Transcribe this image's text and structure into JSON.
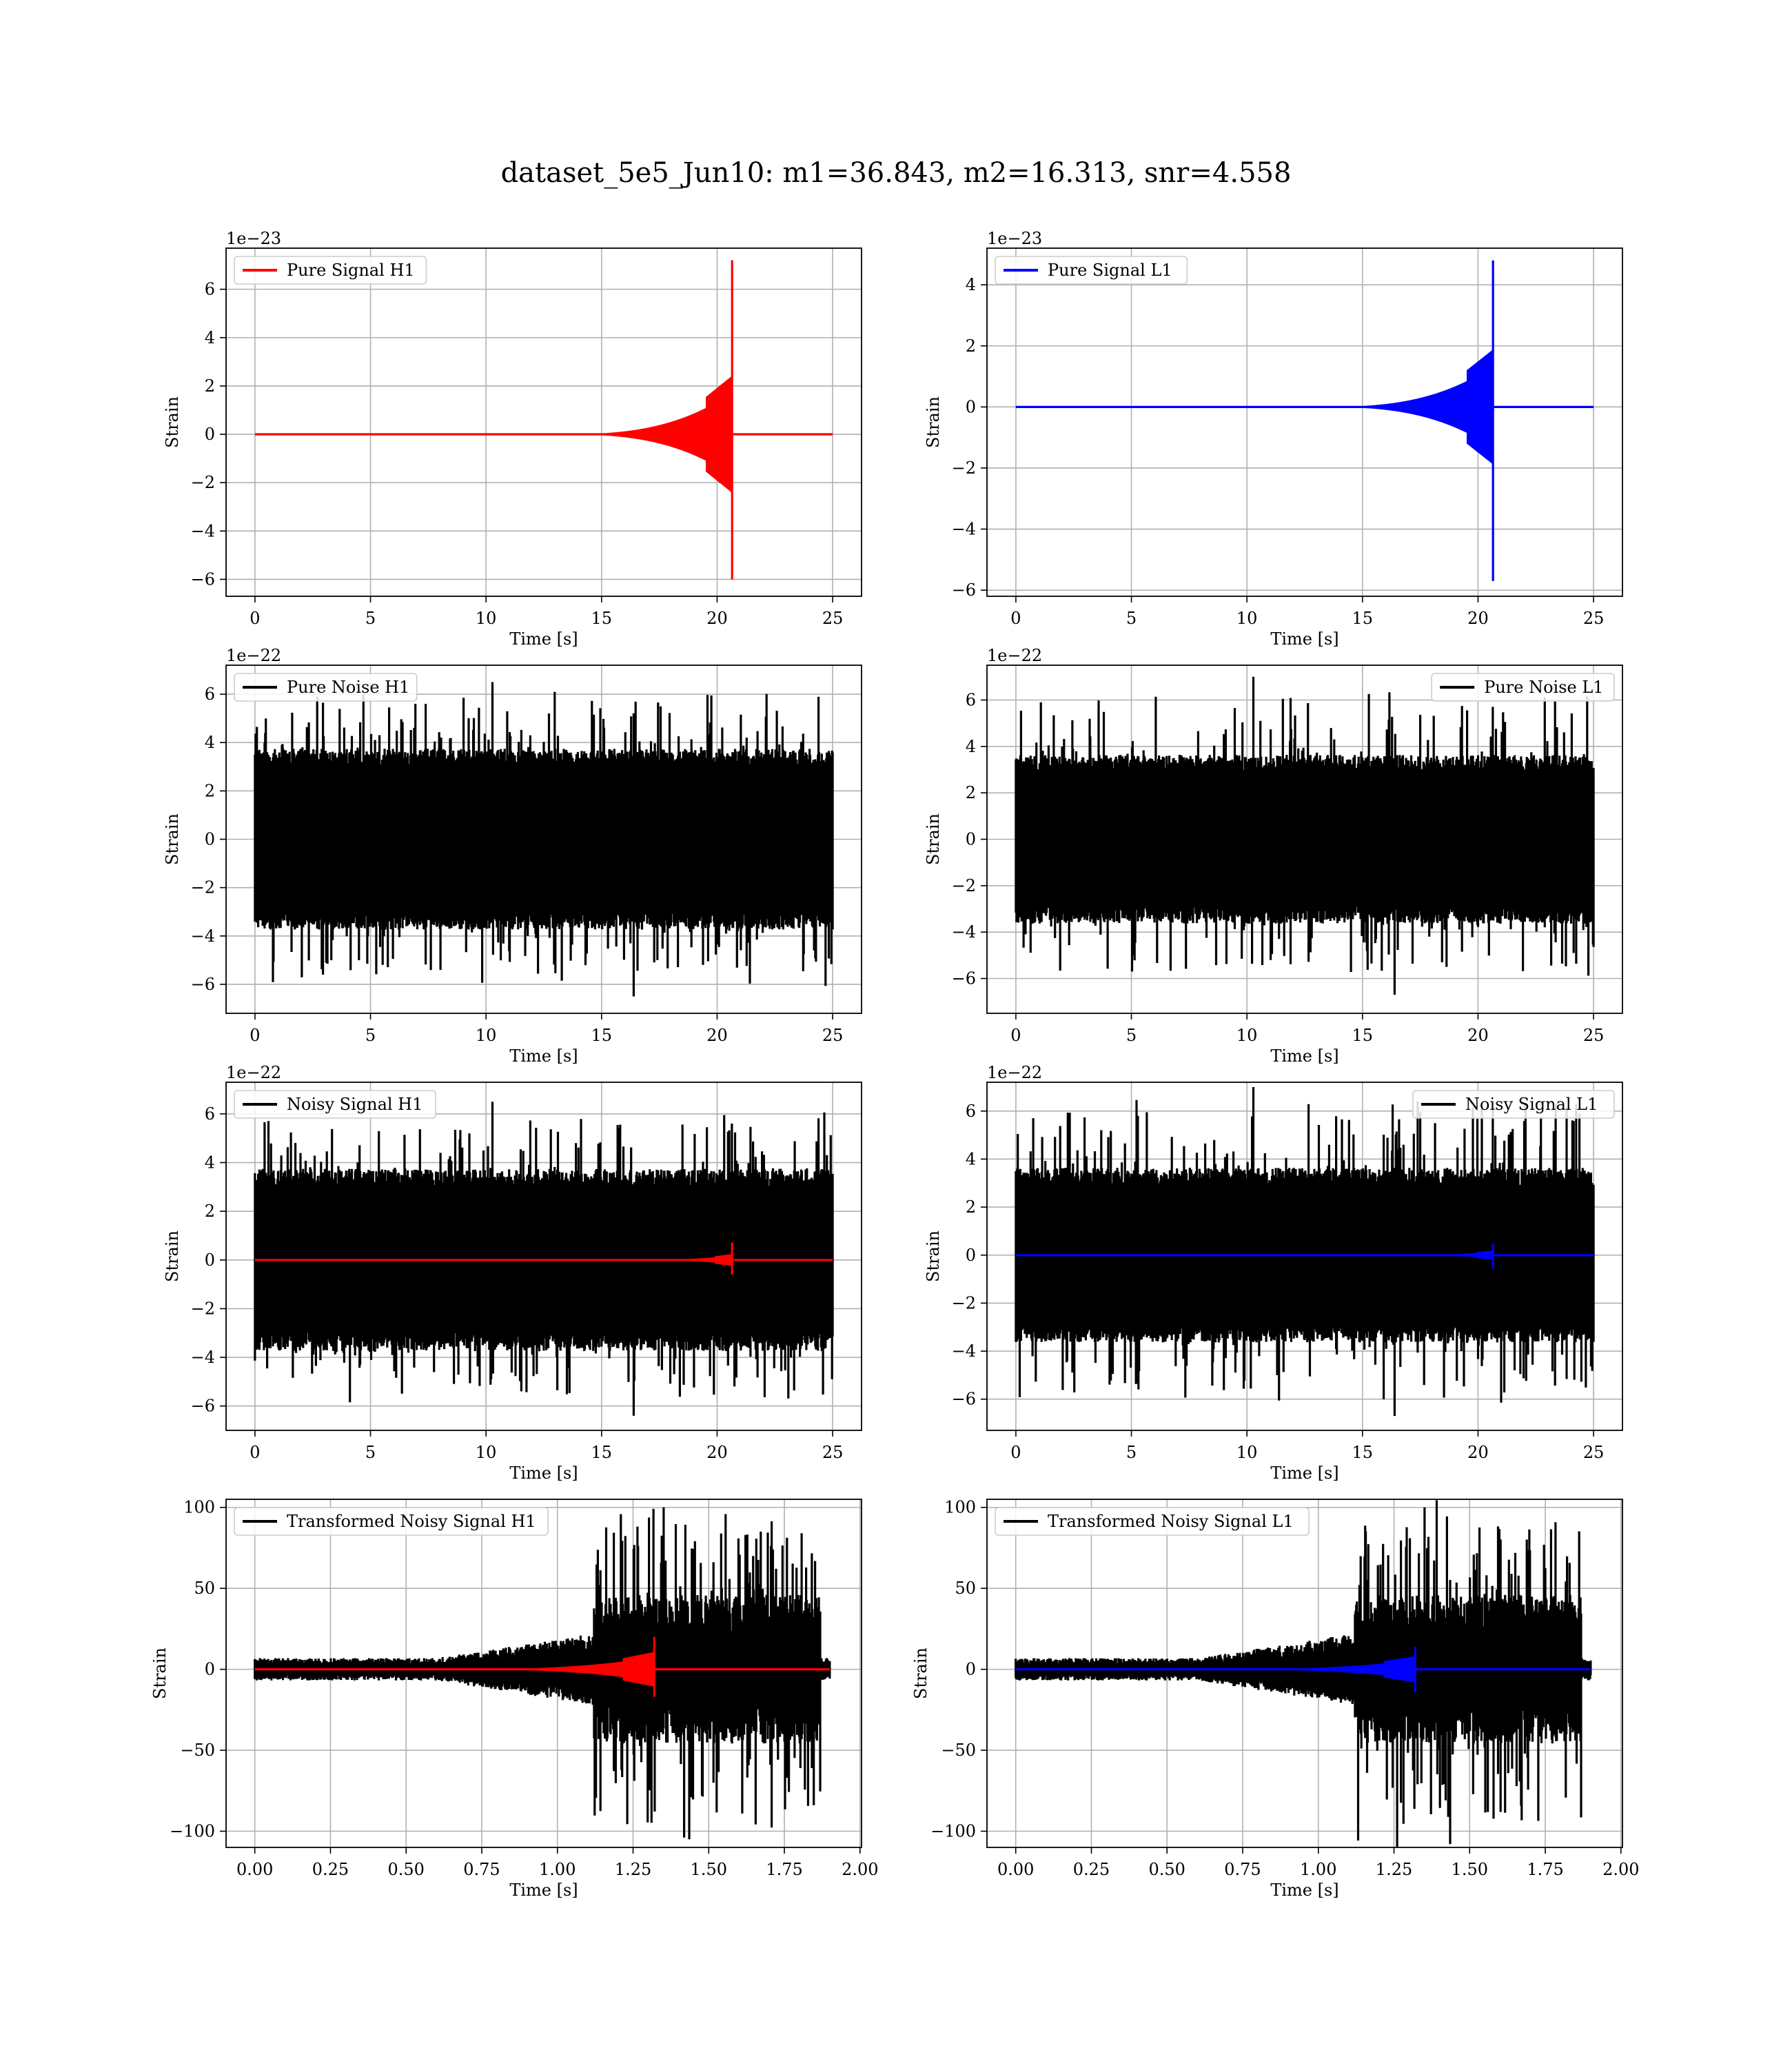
{
  "figure": {
    "title": "dataset_5e5_Jun10: m1=36.843, m2=16.313, snr=4.558"
  },
  "chart_data": [
    {
      "id": "h1-pure-signal",
      "type": "line",
      "xlabel": "Time [s]",
      "ylabel": "Strain",
      "offset_label": "1e−23",
      "xlim": [
        -1.25,
        26.25
      ],
      "ylim": [
        -6.7,
        7.7
      ],
      "xticks": [
        0,
        5,
        10,
        15,
        20,
        25
      ],
      "yticks": [
        -6,
        -4,
        -2,
        0,
        2,
        4,
        6
      ],
      "xtick_labels": [
        "0",
        "5",
        "10",
        "15",
        "20",
        "25"
      ],
      "ytick_labels": [
        "−6",
        "−4",
        "−2",
        "0",
        "2",
        "4",
        "6"
      ],
      "legend": {
        "position": "top-left",
        "entries": [
          {
            "label": "Pure Signal H1",
            "color": "#ff0000"
          }
        ]
      },
      "grid": true,
      "series": [
        {
          "name": "Pure Signal H1",
          "color": "#ff0000",
          "kind": "chirp",
          "t_start": 0,
          "t_end": 25,
          "t_merge": 20.65,
          "peak": [
            7.2,
            -6.0
          ],
          "plateau": 1.8,
          "onset": 15
        }
      ]
    },
    {
      "id": "l1-pure-signal",
      "type": "line",
      "xlabel": "Time [s]",
      "ylabel": "Strain",
      "offset_label": "1e−23",
      "xlim": [
        -1.25,
        26.25
      ],
      "ylim": [
        -6.2,
        5.2
      ],
      "xticks": [
        0,
        5,
        10,
        15,
        20,
        25
      ],
      "yticks": [
        -6,
        -4,
        -2,
        0,
        2,
        4
      ],
      "xtick_labels": [
        "0",
        "5",
        "10",
        "15",
        "20",
        "25"
      ],
      "ytick_labels": [
        "−6",
        "−4",
        "−2",
        "0",
        "2",
        "4"
      ],
      "legend": {
        "position": "top-left",
        "entries": [
          {
            "label": "Pure Signal L1",
            "color": "#0000ff"
          }
        ]
      },
      "grid": true,
      "series": [
        {
          "name": "Pure Signal L1",
          "color": "#0000ff",
          "kind": "chirp",
          "t_start": 0,
          "t_end": 25,
          "t_merge": 20.65,
          "peak": [
            4.8,
            -5.7
          ],
          "plateau": 1.4,
          "onset": 15
        }
      ]
    },
    {
      "id": "h1-pure-noise",
      "type": "line",
      "xlabel": "Time [s]",
      "ylabel": "Strain",
      "offset_label": "1e−22",
      "xlim": [
        -1.25,
        26.25
      ],
      "ylim": [
        -7.2,
        7.2
      ],
      "xticks": [
        0,
        5,
        10,
        15,
        20,
        25
      ],
      "yticks": [
        -6,
        -4,
        -2,
        0,
        2,
        4,
        6
      ],
      "xtick_labels": [
        "0",
        "5",
        "10",
        "15",
        "20",
        "25"
      ],
      "ytick_labels": [
        "−6",
        "−4",
        "−2",
        "0",
        "2",
        "4",
        "6"
      ],
      "legend": {
        "position": "top-left",
        "entries": [
          {
            "label": "Pure Noise H1",
            "color": "#000000"
          }
        ]
      },
      "grid": true,
      "series": [
        {
          "name": "Pure Noise H1",
          "color": "#000000",
          "kind": "noise",
          "t_start": 0,
          "t_end": 25,
          "band": [
            -3.6,
            3.6
          ],
          "extremes": [
            6.5,
            -6.5
          ]
        }
      ]
    },
    {
      "id": "l1-pure-noise",
      "type": "line",
      "xlabel": "Time [s]",
      "ylabel": "Strain",
      "offset_label": "1e−22",
      "xlim": [
        -1.25,
        26.25
      ],
      "ylim": [
        -7.5,
        7.5
      ],
      "xticks": [
        0,
        5,
        10,
        15,
        20,
        25
      ],
      "yticks": [
        -6,
        -4,
        -2,
        0,
        2,
        4,
        6
      ],
      "xtick_labels": [
        "0",
        "5",
        "10",
        "15",
        "20",
        "25"
      ],
      "ytick_labels": [
        "−6",
        "−4",
        "−2",
        "0",
        "2",
        "4",
        "6"
      ],
      "legend": {
        "position": "top-right",
        "entries": [
          {
            "label": "Pure Noise L1",
            "color": "#000000"
          }
        ]
      },
      "grid": true,
      "series": [
        {
          "name": "Pure Noise L1",
          "color": "#000000",
          "kind": "noise",
          "t_start": 0,
          "t_end": 25,
          "band": [
            -3.5,
            3.5
          ],
          "extremes": [
            7.0,
            -6.7
          ]
        }
      ]
    },
    {
      "id": "h1-noisy-signal",
      "type": "line",
      "xlabel": "Time [s]",
      "ylabel": "Strain",
      "offset_label": "1e−22",
      "xlim": [
        -1.25,
        26.25
      ],
      "ylim": [
        -7.0,
        7.3
      ],
      "xticks": [
        0,
        5,
        10,
        15,
        20,
        25
      ],
      "yticks": [
        -6,
        -4,
        -2,
        0,
        2,
        4,
        6
      ],
      "xtick_labels": [
        "0",
        "5",
        "10",
        "15",
        "20",
        "25"
      ],
      "ytick_labels": [
        "−6",
        "−4",
        "−2",
        "0",
        "2",
        "4",
        "6"
      ],
      "legend": {
        "position": "top-left",
        "entries": [
          {
            "label": "Noisy Signal H1",
            "color": "#000000"
          }
        ]
      },
      "grid": true,
      "series": [
        {
          "name": "Noisy Signal H1",
          "color": "#000000",
          "kind": "noise",
          "t_start": 0,
          "t_end": 25,
          "band": [
            -3.6,
            3.6
          ],
          "extremes": [
            6.5,
            -6.4
          ]
        },
        {
          "name": "signal",
          "color": "#ff0000",
          "kind": "chirp",
          "t_start": 0,
          "t_end": 25,
          "t_merge": 20.65,
          "peak": [
            0.72,
            -0.6
          ],
          "plateau": 0.18,
          "onset": 17
        }
      ]
    },
    {
      "id": "l1-noisy-signal",
      "type": "line",
      "xlabel": "Time [s]",
      "ylabel": "Strain",
      "offset_label": "1e−22",
      "xlim": [
        -1.25,
        26.25
      ],
      "ylim": [
        -7.3,
        7.2
      ],
      "xticks": [
        0,
        5,
        10,
        15,
        20,
        25
      ],
      "yticks": [
        -6,
        -4,
        -2,
        0,
        2,
        4,
        6
      ],
      "xtick_labels": [
        "0",
        "5",
        "10",
        "15",
        "20",
        "25"
      ],
      "ytick_labels": [
        "−6",
        "−4",
        "−2",
        "0",
        "2",
        "4",
        "6"
      ],
      "legend": {
        "position": "top-right",
        "entries": [
          {
            "label": "Noisy Signal L1",
            "color": "#000000"
          }
        ]
      },
      "grid": true,
      "series": [
        {
          "name": "Noisy Signal L1",
          "color": "#000000",
          "kind": "noise",
          "t_start": 0,
          "t_end": 25,
          "band": [
            -3.5,
            3.5
          ],
          "extremes": [
            7.0,
            -6.7
          ]
        },
        {
          "name": "signal",
          "color": "#0000ff",
          "kind": "chirp",
          "t_start": 0,
          "t_end": 25,
          "t_merge": 20.65,
          "peak": [
            0.48,
            -0.57
          ],
          "plateau": 0.14,
          "onset": 17
        }
      ]
    },
    {
      "id": "h1-transformed",
      "type": "line",
      "xlabel": "Time [s]",
      "ylabel": "Strain",
      "offset_label": "",
      "xlim": [
        -0.095,
        2.005
      ],
      "ylim": [
        -110,
        105
      ],
      "xticks": [
        0,
        0.25,
        0.5,
        0.75,
        1.0,
        1.25,
        1.5,
        1.75,
        2.0
      ],
      "yticks": [
        -100,
        -50,
        0,
        50,
        100
      ],
      "xtick_labels": [
        "0.00",
        "0.25",
        "0.50",
        "0.75",
        "1.00",
        "1.25",
        "1.50",
        "1.75",
        "2.00"
      ],
      "ytick_labels": [
        "−100",
        "−50",
        "0",
        "50",
        "100"
      ],
      "legend": {
        "position": "top-left",
        "entries": [
          {
            "label": "Transformed Noisy Signal H1",
            "color": "#000000"
          }
        ]
      },
      "grid": true,
      "series": [
        {
          "name": "Transformed Noisy Signal H1",
          "color": "#000000",
          "kind": "whitened",
          "t_start": 0,
          "t_end": 1.9,
          "quiet_amp": 6,
          "ramp_end": 1.12,
          "loud_amp": 40,
          "loud_end": 1.87,
          "extremes": [
            100,
            -105
          ]
        },
        {
          "name": "signal",
          "color": "#ff0000",
          "kind": "chirp",
          "t_start": 0,
          "t_end": 1.9,
          "t_merge": 1.32,
          "peak": [
            20,
            -17
          ],
          "plateau": 8,
          "onset": 0.8
        }
      ]
    },
    {
      "id": "l1-transformed",
      "type": "line",
      "xlabel": "Time [s]",
      "ylabel": "Strain",
      "offset_label": "",
      "xlim": [
        -0.095,
        2.005
      ],
      "ylim": [
        -110,
        105
      ],
      "xticks": [
        0,
        0.25,
        0.5,
        0.75,
        1.0,
        1.25,
        1.5,
        1.75,
        2.0
      ],
      "yticks": [
        -100,
        -50,
        0,
        50,
        100
      ],
      "xtick_labels": [
        "0.00",
        "0.25",
        "0.50",
        "0.75",
        "1.00",
        "1.25",
        "1.50",
        "1.75",
        "2.00"
      ],
      "ytick_labels": [
        "−100",
        "−50",
        "0",
        "50",
        "100"
      ],
      "legend": {
        "position": "top-left",
        "entries": [
          {
            "label": "Transformed Noisy Signal L1",
            "color": "#000000"
          }
        ]
      },
      "grid": true,
      "series": [
        {
          "name": "Transformed Noisy Signal L1",
          "color": "#000000",
          "kind": "whitened",
          "t_start": 0,
          "t_end": 1.9,
          "quiet_amp": 6,
          "ramp_end": 1.12,
          "loud_amp": 40,
          "loud_end": 1.87,
          "extremes": [
            100,
            -108
          ]
        },
        {
          "name": "signal",
          "color": "#0000ff",
          "kind": "chirp",
          "t_start": 0,
          "t_end": 1.9,
          "t_merge": 1.32,
          "peak": [
            14,
            -14
          ],
          "plateau": 6,
          "onset": 0.8
        }
      ]
    }
  ]
}
